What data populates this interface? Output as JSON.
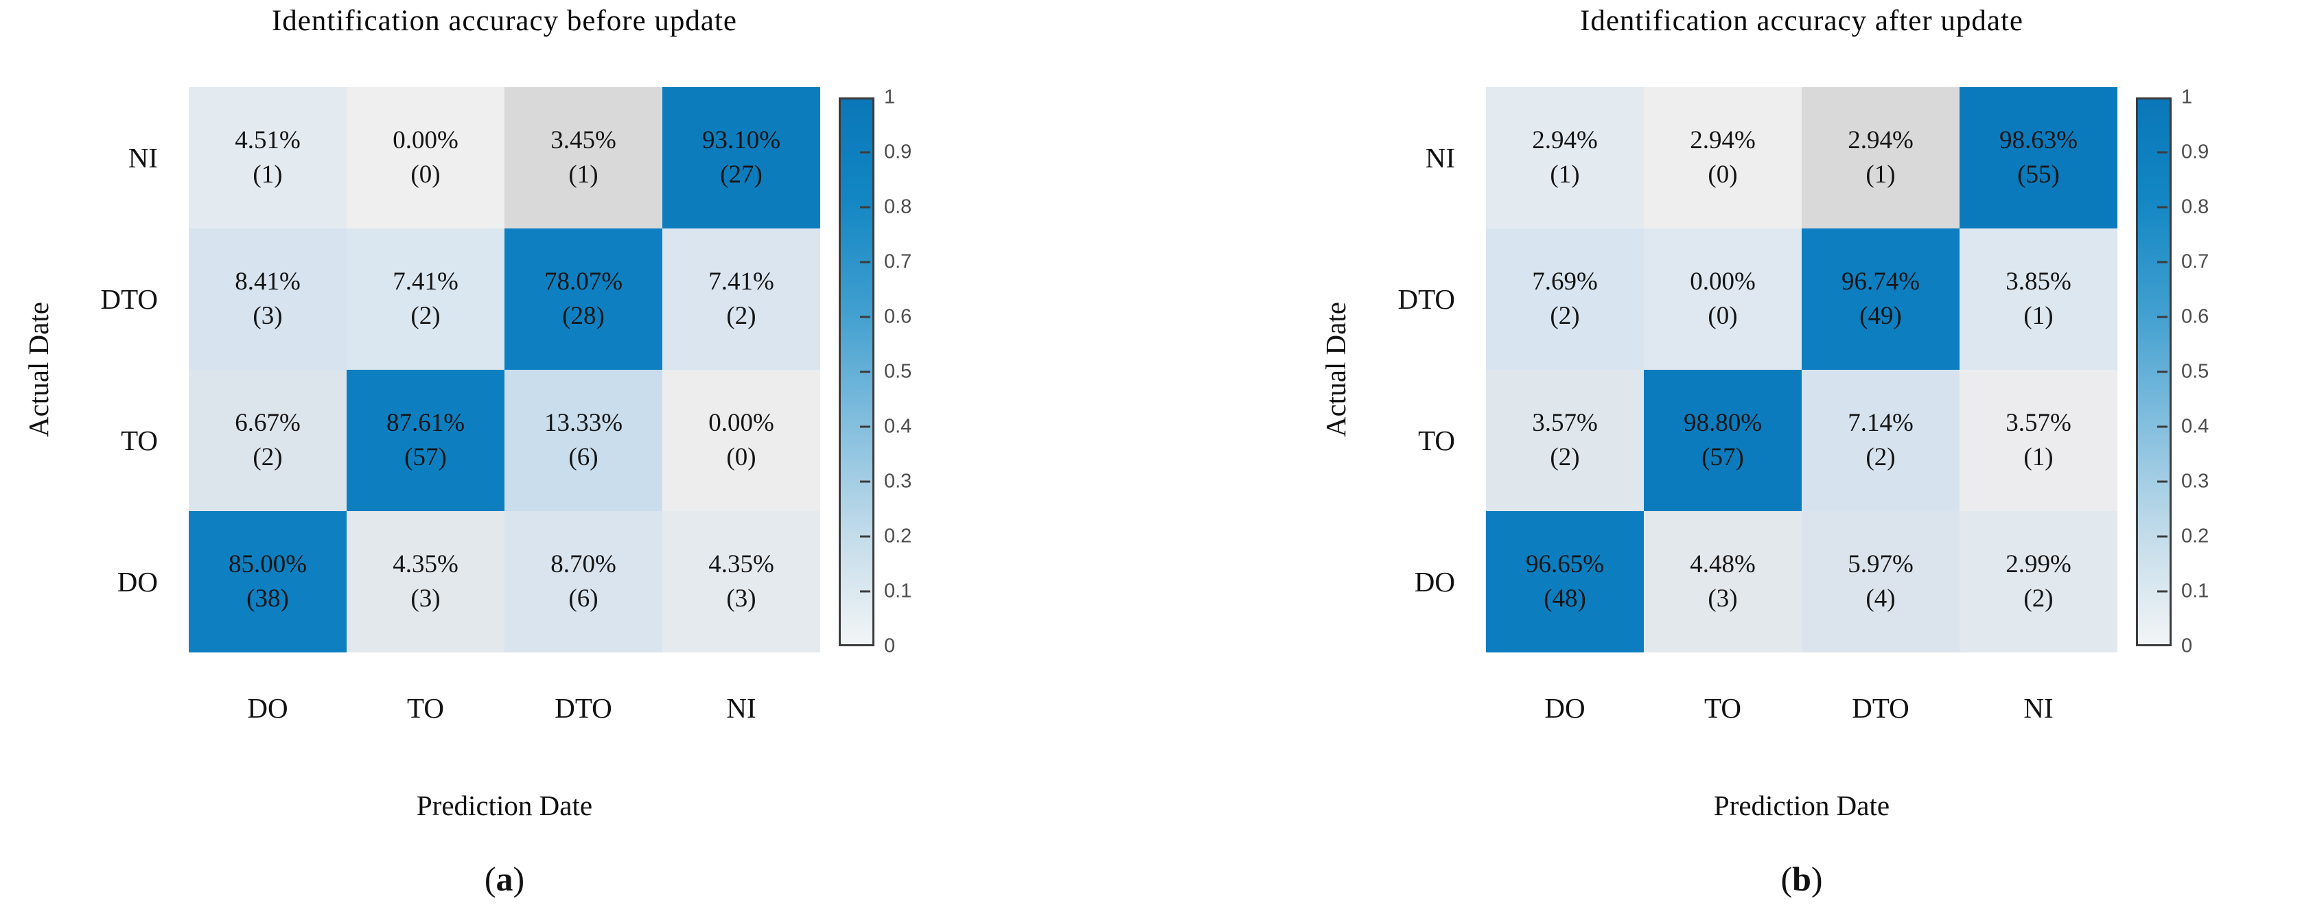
{
  "panels": [
    {
      "title": "Identification accuracy before update",
      "ylabel": "Actual Date",
      "xlabel": "Prediction Date",
      "caption_open": "(",
      "caption_letter": "a",
      "caption_close": ")",
      "row_labels": [
        "NI",
        "DTO",
        "TO",
        "DO"
      ],
      "col_labels": [
        "DO",
        "TO",
        "DTO",
        "NI"
      ],
      "cells": [
        [
          {
            "percent": "4.51%",
            "count": "(1)",
            "bg": "#e3eaf0"
          },
          {
            "percent": "0.00%",
            "count": "(0)",
            "bg": "#efefef"
          },
          {
            "percent": "3.45%",
            "count": "(1)",
            "bg": "#d9d9d9"
          },
          {
            "percent": "93.10%",
            "count": "(27)",
            "bg": "#0d7cbd"
          }
        ],
        [
          {
            "percent": "8.41%",
            "count": "(3)",
            "bg": "#d7e3ef"
          },
          {
            "percent": "7.41%",
            "count": "(2)",
            "bg": "#dae6f0"
          },
          {
            "percent": "78.07%",
            "count": "(28)",
            "bg": "#0e80c1"
          },
          {
            "percent": "7.41%",
            "count": "(2)",
            "bg": "#dae5f0"
          }
        ],
        [
          {
            "percent": "6.67%",
            "count": "(2)",
            "bg": "#dde5ec"
          },
          {
            "percent": "87.61%",
            "count": "(57)",
            "bg": "#0d7fc0"
          },
          {
            "percent": "13.33%",
            "count": "(6)",
            "bg": "#c9dded"
          },
          {
            "percent": "0.00%",
            "count": "(0)",
            "bg": "#ededee"
          }
        ],
        [
          {
            "percent": "85.00%",
            "count": "(38)",
            "bg": "#0e7fc0"
          },
          {
            "percent": "4.35%",
            "count": "(3)",
            "bg": "#e3e8ec"
          },
          {
            "percent": "8.70%",
            "count": "(6)",
            "bg": "#d9e4ee"
          },
          {
            "percent": "4.35%",
            "count": "(3)",
            "bg": "#e5eaee"
          }
        ]
      ]
    },
    {
      "title": "Identification accuracy after update",
      "ylabel": "Actual Date",
      "xlabel": "Prediction Date",
      "caption_open": "(",
      "caption_letter": "b",
      "caption_close": ")",
      "row_labels": [
        "NI",
        "DTO",
        "TO",
        "DO"
      ],
      "col_labels": [
        "DO",
        "TO",
        "DTO",
        "NI"
      ],
      "cells": [
        [
          {
            "percent": "2.94%",
            "count": "(1)",
            "bg": "#e3eaf0"
          },
          {
            "percent": "2.94%",
            "count": "(0)",
            "bg": "#eeeeef"
          },
          {
            "percent": "2.94%",
            "count": "(1)",
            "bg": "#d9d9d9"
          },
          {
            "percent": "98.63%",
            "count": "(55)",
            "bg": "#0b7abc"
          }
        ],
        [
          {
            "percent": "7.69%",
            "count": "(2)",
            "bg": "#d8e4ef"
          },
          {
            "percent": "0.00%",
            "count": "(0)",
            "bg": "#dfe8f1"
          },
          {
            "percent": "96.74%",
            "count": "(49)",
            "bg": "#0d7ec0"
          },
          {
            "percent": "3.85%",
            "count": "(1)",
            "bg": "#dde7f0"
          }
        ],
        [
          {
            "percent": "3.57%",
            "count": "(2)",
            "bg": "#dfe7ed"
          },
          {
            "percent": "98.80%",
            "count": "(57)",
            "bg": "#0b7bbd"
          },
          {
            "percent": "7.14%",
            "count": "(2)",
            "bg": "#d6e3ef"
          },
          {
            "percent": "3.57%",
            "count": "(1)",
            "bg": "#ececee"
          }
        ],
        [
          {
            "percent": "96.65%",
            "count": "(48)",
            "bg": "#0c7dbf"
          },
          {
            "percent": "4.48%",
            "count": "(3)",
            "bg": "#e3e8ec"
          },
          {
            "percent": "5.97%",
            "count": "(4)",
            "bg": "#dbe4ec"
          },
          {
            "percent": "2.99%",
            "count": "(2)",
            "bg": "#e1e8ee"
          }
        ]
      ]
    }
  ],
  "colorbar": {
    "ticks": [
      "1",
      "0.9",
      "0.8",
      "0.7",
      "0.6",
      "0.5",
      "0.4",
      "0.3",
      "0.2",
      "0.1",
      "0"
    ],
    "gradient": [
      "#0a77b9 0%",
      "#1286c3 18%",
      "#3e9ecf 38%",
      "#7ebcdd 58%",
      "#c3dcea 80%",
      "#f2f5f6 100%"
    ],
    "border_color": "#3c3c3c",
    "tick_color": "#4d4d4d"
  },
  "chart_data": [
    {
      "type": "heatmap",
      "panel_label": "(a)",
      "title": "Identification accuracy before update",
      "xlabel": "Prediction Date",
      "ylabel": "Actual Date",
      "x_categories": [
        "DO",
        "TO",
        "DTO",
        "NI"
      ],
      "y_categories": [
        "NI",
        "DTO",
        "TO",
        "DO"
      ],
      "percent": [
        [
          4.51,
          0.0,
          3.45,
          93.1
        ],
        [
          8.41,
          7.41,
          78.07,
          7.41
        ],
        [
          6.67,
          87.61,
          13.33,
          0.0
        ],
        [
          85.0,
          4.35,
          8.7,
          4.35
        ]
      ],
      "counts": [
        [
          1,
          0,
          1,
          27
        ],
        [
          3,
          2,
          28,
          2
        ],
        [
          2,
          57,
          6,
          0
        ],
        [
          38,
          3,
          6,
          3
        ]
      ],
      "colorbar_range": [
        0,
        1
      ],
      "colorbar_ticks": [
        1,
        0.9,
        0.8,
        0.7,
        0.6,
        0.5,
        0.4,
        0.3,
        0.2,
        0.1,
        0
      ],
      "legend_position": "right",
      "grid": false
    },
    {
      "type": "heatmap",
      "panel_label": "(b)",
      "title": "Identification accuracy after update",
      "xlabel": "Prediction Date",
      "ylabel": "Actual Date",
      "x_categories": [
        "DO",
        "TO",
        "DTO",
        "NI"
      ],
      "y_categories": [
        "NI",
        "DTO",
        "TO",
        "DO"
      ],
      "percent": [
        [
          2.94,
          2.94,
          2.94,
          98.63
        ],
        [
          7.69,
          0.0,
          96.74,
          3.85
        ],
        [
          3.57,
          98.8,
          7.14,
          3.57
        ],
        [
          96.65,
          4.48,
          5.97,
          2.99
        ]
      ],
      "counts": [
        [
          1,
          0,
          1,
          55
        ],
        [
          2,
          0,
          49,
          1
        ],
        [
          2,
          57,
          2,
          1
        ],
        [
          48,
          3,
          4,
          2
        ]
      ],
      "colorbar_range": [
        0,
        1
      ],
      "colorbar_ticks": [
        1,
        0.9,
        0.8,
        0.7,
        0.6,
        0.5,
        0.4,
        0.3,
        0.2,
        0.1,
        0
      ],
      "legend_position": "right",
      "grid": false
    }
  ]
}
